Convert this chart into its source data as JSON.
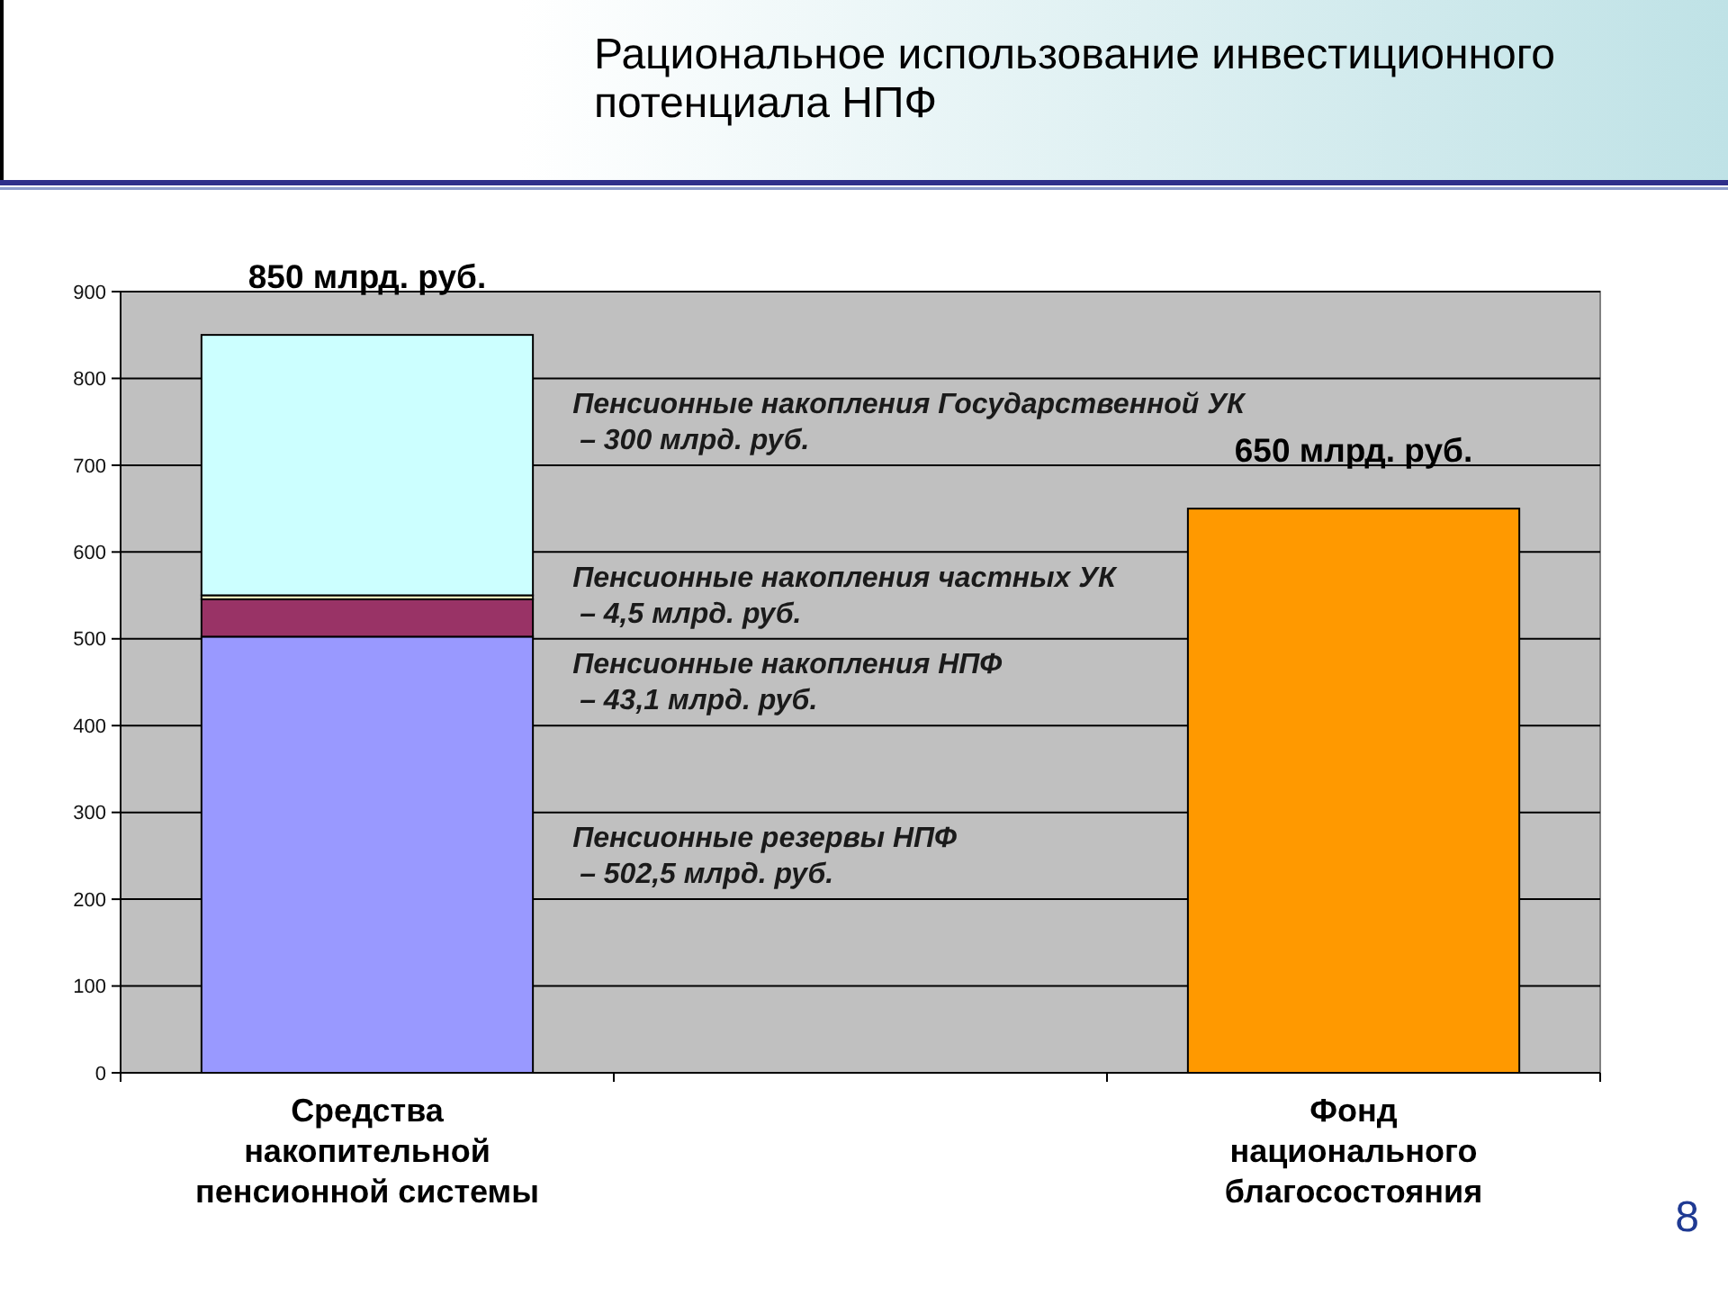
{
  "chart_data": {
    "type": "bar",
    "title": "Рациональное использование инвестиционного потенциала НПФ",
    "categories": [
      "Средства\nнакопительной\nпенсионной системы",
      null,
      "Фонд\nнационального\nблагосостояния"
    ],
    "series": [
      {
        "name": "Пенсионные резервы НПФ\n– 502,5 млрд. руб.",
        "color": "#9999ff",
        "values": [
          502.5,
          null,
          null
        ]
      },
      {
        "name": "Пенсионные накопления НПФ\n– 43,1 млрд. руб.",
        "color": "#993366",
        "values": [
          43.1,
          null,
          null
        ]
      },
      {
        "name": "Пенсионные накопления частных УК\n– 4,5 млрд. руб.",
        "color": "#ffffcc",
        "values": [
          4.5,
          null,
          null
        ]
      },
      {
        "name": "Пенсионные накопления Государственной УК\n– 300 млрд. руб.",
        "color": "#ccffff",
        "values": [
          300,
          null,
          null
        ]
      },
      {
        "color": "#ff9900",
        "values": [
          null,
          null,
          650
        ]
      }
    ],
    "stacked": true,
    "totals": [
      "850 млрд. руб.",
      null,
      "650 млрд. руб."
    ],
    "ylim": [
      0,
      900
    ],
    "yticks": [
      0,
      100,
      200,
      300,
      400,
      500,
      600,
      700,
      800,
      900
    ],
    "grid": "y",
    "annotations": [
      "8"
    ]
  }
}
